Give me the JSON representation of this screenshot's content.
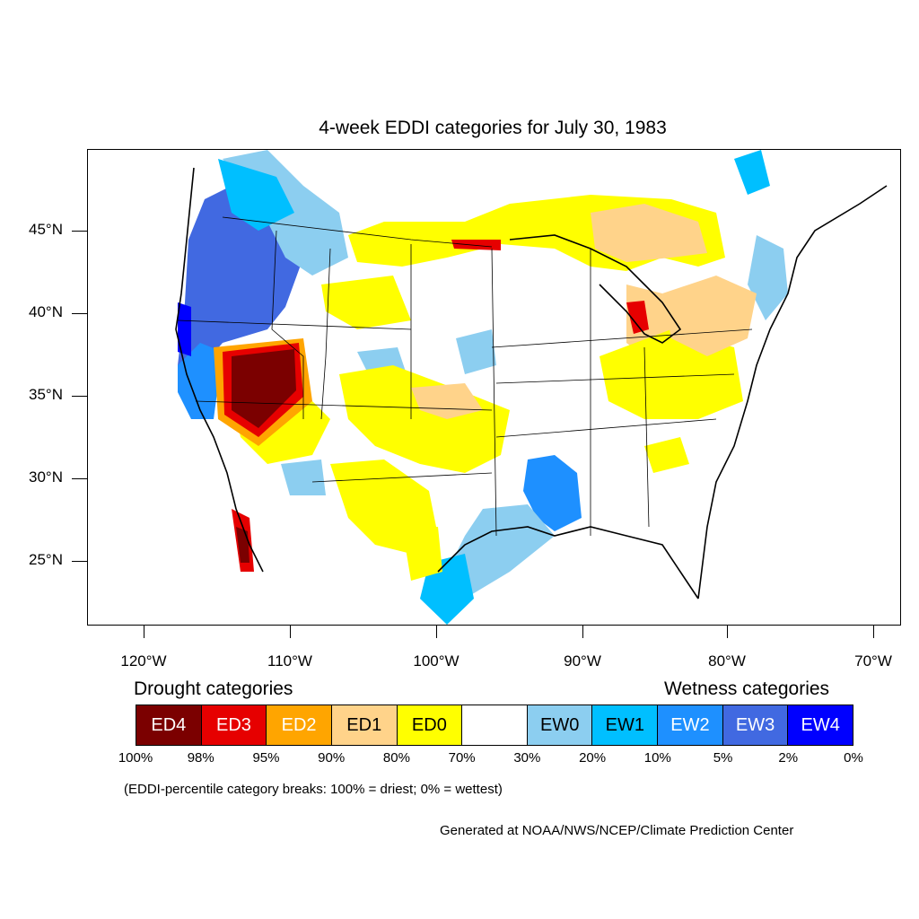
{
  "title": "4-week EDDI categories for July 30, 1983",
  "latitude_labels": [
    "45°N",
    "40°N",
    "35°N",
    "30°N",
    "25°N"
  ],
  "longitude_labels": [
    "120°W",
    "110°W",
    "100°W",
    "90°W",
    "80°W",
    "70°W"
  ],
  "drought_heading": "Drought categories",
  "wetness_heading": "Wetness categories",
  "categories": [
    {
      "label": "ED4",
      "color": "#7b0000",
      "text_color": "#ffffff"
    },
    {
      "label": "ED3",
      "color": "#e60000",
      "text_color": "#ffffff"
    },
    {
      "label": "ED2",
      "color": "#ffa500",
      "text_color": "#ffffff"
    },
    {
      "label": "ED1",
      "color": "#ffd38a",
      "text_color": "#000000"
    },
    {
      "label": "ED0",
      "color": "#ffff00",
      "text_color": "#000000"
    },
    {
      "label": "",
      "color": "#ffffff",
      "text_color": "#000000"
    },
    {
      "label": "EW0",
      "color": "#8ccef0",
      "text_color": "#000000"
    },
    {
      "label": "EW1",
      "color": "#00bfff",
      "text_color": "#000000"
    },
    {
      "label": "EW2",
      "color": "#1e90ff",
      "text_color": "#ffffff"
    },
    {
      "label": "EW3",
      "color": "#4169e1",
      "text_color": "#ffffff"
    },
    {
      "label": "EW4",
      "color": "#0000ff",
      "text_color": "#ffffff"
    }
  ],
  "percentile_breaks": [
    "100%",
    "98%",
    "95%",
    "90%",
    "80%",
    "70%",
    "30%",
    "20%",
    "10%",
    "5%",
    "2%",
    "0%"
  ],
  "note": "(EDDI-percentile category breaks: 100% = driest; 0% = wettest)",
  "credit": "Generated at NOAA/NWS/NCEP/Climate Prediction Center"
}
